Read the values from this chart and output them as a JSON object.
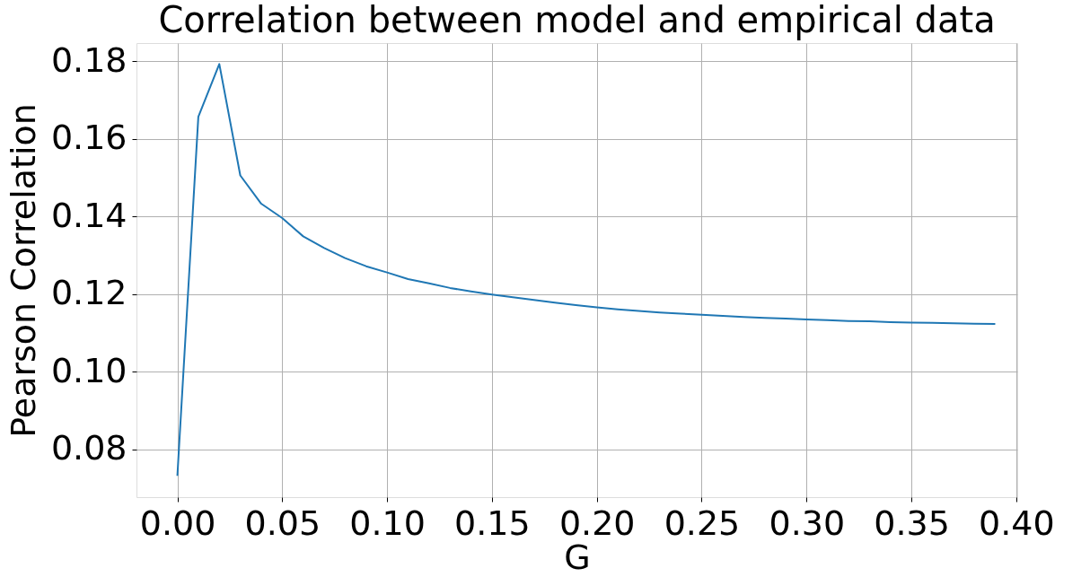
{
  "chart_data": {
    "type": "line",
    "title": "Correlation between model and empirical data",
    "xlabel": "G",
    "ylabel": "Pearson Correlation",
    "x": [
      0,
      0.01,
      0.02,
      0.03,
      0.04,
      0.05,
      0.06,
      0.07,
      0.08,
      0.09,
      0.1,
      0.11,
      0.12,
      0.13,
      0.14,
      0.15,
      0.16,
      0.17,
      0.18,
      0.19,
      0.2,
      0.21,
      0.22,
      0.23,
      0.24,
      0.25,
      0.26,
      0.27,
      0.28,
      0.29,
      0.3,
      0.31,
      0.32,
      0.33,
      0.34,
      0.35,
      0.36,
      0.37,
      0.38,
      0.39
    ],
    "series": [
      {
        "color": "#1f77b4",
        "values": [
          0.0732,
          0.1657,
          0.1793,
          0.1506,
          0.1433,
          0.1396,
          0.1349,
          0.1319,
          0.1293,
          0.1272,
          0.1256,
          0.1239,
          0.1228,
          0.1216,
          0.1207,
          0.1199,
          0.1192,
          0.1185,
          0.1178,
          0.1172,
          0.1166,
          0.1161,
          0.1157,
          0.1153,
          0.115,
          0.1147,
          0.1144,
          0.1141,
          0.1139,
          0.1137,
          0.1135,
          0.1133,
          0.1131,
          0.113,
          0.1128,
          0.1127,
          0.1126,
          0.1125,
          0.1124,
          0.1123
        ]
      }
    ],
    "xlim": [
      -0.0195,
      0.4005
    ],
    "ylim": [
      0.0677,
      0.1847
    ],
    "xticks": [
      {
        "value": 0,
        "label": "0.00"
      },
      0.05,
      {
        "value": 0.1,
        "label": "0.10"
      },
      0.15,
      {
        "value": 0.2,
        "label": "0.20"
      },
      0.25,
      {
        "value": 0.3,
        "label": "0.30"
      },
      0.35,
      {
        "value": 0.4,
        "label": "0.40"
      }
    ],
    "yticks": [
      0.08,
      {
        "value": 0.1,
        "label": "0.10"
      },
      0.12,
      0.14,
      0.16,
      0.18
    ],
    "grid": true,
    "marker": "none",
    "line_style": "solid"
  }
}
